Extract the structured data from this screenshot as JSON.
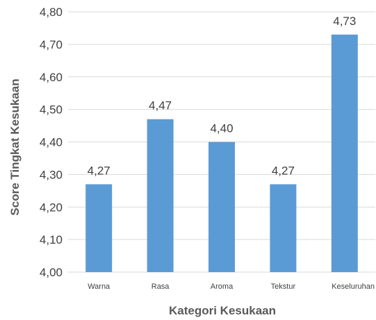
{
  "chart_data": {
    "type": "bar",
    "title": "",
    "xlabel": "Kategori Kesukaan",
    "ylabel": "Score Tingkat Kesukaan",
    "categories": [
      "Warna",
      "Rasa",
      "Aroma",
      "Tekstur",
      "Keseluruhan"
    ],
    "values": [
      4.27,
      4.47,
      4.4,
      4.27,
      4.73
    ],
    "value_labels": [
      "4,27",
      "4,47",
      "4,40",
      "4,27",
      "4,73"
    ],
    "yticks": [
      "4,00",
      "4,10",
      "4,20",
      "4,30",
      "4,40",
      "4,50",
      "4,60",
      "4,70",
      "4,80"
    ],
    "ylim": [
      4.0,
      4.8
    ],
    "grid": true,
    "legend": "none",
    "bar_color": "#5b9bd5"
  }
}
